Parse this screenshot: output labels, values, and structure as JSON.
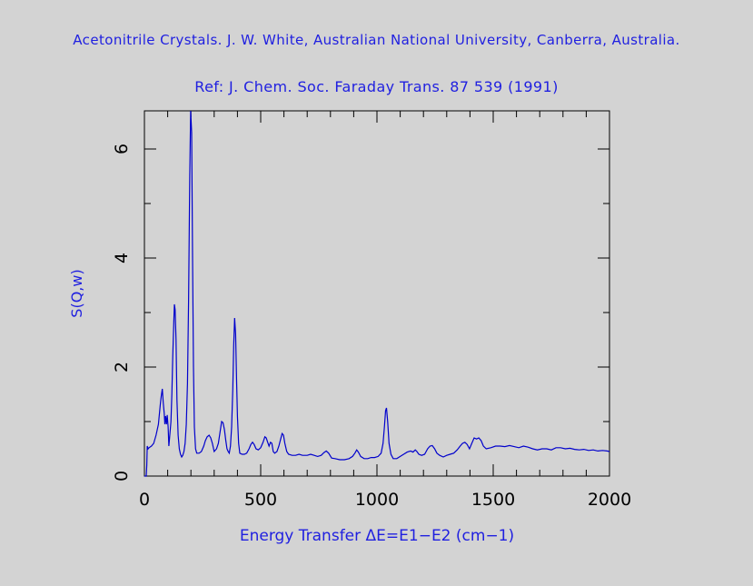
{
  "chart_data": {
    "type": "line",
    "title": "Acetonitrile Crystals. J. W. White, Australian National University, Canberra, Australia.",
    "subtitle": "Ref: J. Chem. Soc. Faraday Trans. 87 539 (1991)",
    "xlabel": "Energy Transfer ΔE=E1−E2 (cm−1)",
    "ylabel": "S(Q,w)",
    "xlim": [
      0,
      2000
    ],
    "ylim": [
      0,
      6.7
    ],
    "x_ticks": [
      "0",
      "500",
      "1000",
      "1500",
      "2000"
    ],
    "y_ticks": [
      "0",
      "2",
      "4",
      "6"
    ],
    "line_color": "#0000cc",
    "series": [
      {
        "points": [
          [
            0,
            0
          ],
          [
            8,
            0
          ],
          [
            10,
            0.2
          ],
          [
            12,
            0.55
          ],
          [
            16,
            0.5
          ],
          [
            20,
            0.52
          ],
          [
            30,
            0.55
          ],
          [
            40,
            0.6
          ],
          [
            50,
            0.75
          ],
          [
            60,
            0.95
          ],
          [
            68,
            1.3
          ],
          [
            72,
            1.45
          ],
          [
            77,
            1.6
          ],
          [
            81,
            1.35
          ],
          [
            85,
            1.15
          ],
          [
            88,
            0.95
          ],
          [
            91,
            1.1
          ],
          [
            95,
            0.95
          ],
          [
            98,
            1.12
          ],
          [
            102,
            0.9
          ],
          [
            105,
            0.55
          ],
          [
            110,
            0.8
          ],
          [
            114,
            1.0
          ],
          [
            118,
            1.5
          ],
          [
            122,
            2.2
          ],
          [
            126,
            2.8
          ],
          [
            129,
            3.15
          ],
          [
            132,
            3.05
          ],
          [
            136,
            2.5
          ],
          [
            140,
            1.4
          ],
          [
            145,
            0.75
          ],
          [
            150,
            0.5
          ],
          [
            155,
            0.4
          ],
          [
            160,
            0.35
          ],
          [
            165,
            0.38
          ],
          [
            170,
            0.45
          ],
          [
            175,
            0.6
          ],
          [
            180,
            0.95
          ],
          [
            185,
            1.7
          ],
          [
            190,
            3.2
          ],
          [
            195,
            5.5
          ],
          [
            199,
            6.7
          ],
          [
            203,
            6.3
          ],
          [
            207,
            4.0
          ],
          [
            211,
            2.0
          ],
          [
            215,
            0.9
          ],
          [
            220,
            0.5
          ],
          [
            225,
            0.42
          ],
          [
            235,
            0.42
          ],
          [
            245,
            0.45
          ],
          [
            255,
            0.55
          ],
          [
            262,
            0.65
          ],
          [
            270,
            0.72
          ],
          [
            278,
            0.75
          ],
          [
            285,
            0.7
          ],
          [
            292,
            0.6
          ],
          [
            300,
            0.45
          ],
          [
            310,
            0.5
          ],
          [
            318,
            0.6
          ],
          [
            325,
            0.8
          ],
          [
            332,
            1.0
          ],
          [
            338,
            0.98
          ],
          [
            344,
            0.85
          ],
          [
            350,
            0.65
          ],
          [
            355,
            0.5
          ],
          [
            360,
            0.45
          ],
          [
            365,
            0.42
          ],
          [
            370,
            0.55
          ],
          [
            375,
            0.9
          ],
          [
            380,
            1.6
          ],
          [
            384,
            2.4
          ],
          [
            388,
            2.9
          ],
          [
            392,
            2.6
          ],
          [
            396,
            1.8
          ],
          [
            400,
            1.1
          ],
          [
            405,
            0.6
          ],
          [
            410,
            0.42
          ],
          [
            420,
            0.4
          ],
          [
            430,
            0.4
          ],
          [
            440,
            0.42
          ],
          [
            450,
            0.5
          ],
          [
            458,
            0.58
          ],
          [
            465,
            0.62
          ],
          [
            472,
            0.58
          ],
          [
            480,
            0.5
          ],
          [
            490,
            0.48
          ],
          [
            500,
            0.52
          ],
          [
            510,
            0.62
          ],
          [
            518,
            0.72
          ],
          [
            524,
            0.7
          ],
          [
            530,
            0.62
          ],
          [
            536,
            0.55
          ],
          [
            542,
            0.62
          ],
          [
            548,
            0.6
          ],
          [
            554,
            0.45
          ],
          [
            560,
            0.42
          ],
          [
            570,
            0.45
          ],
          [
            578,
            0.55
          ],
          [
            586,
            0.68
          ],
          [
            592,
            0.78
          ],
          [
            598,
            0.75
          ],
          [
            604,
            0.6
          ],
          [
            612,
            0.45
          ],
          [
            620,
            0.4
          ],
          [
            635,
            0.38
          ],
          [
            650,
            0.38
          ],
          [
            665,
            0.4
          ],
          [
            680,
            0.38
          ],
          [
            700,
            0.38
          ],
          [
            715,
            0.4
          ],
          [
            730,
            0.38
          ],
          [
            745,
            0.36
          ],
          [
            760,
            0.38
          ],
          [
            772,
            0.43
          ],
          [
            782,
            0.46
          ],
          [
            792,
            0.42
          ],
          [
            805,
            0.33
          ],
          [
            820,
            0.32
          ],
          [
            840,
            0.3
          ],
          [
            860,
            0.3
          ],
          [
            880,
            0.32
          ],
          [
            895,
            0.36
          ],
          [
            905,
            0.42
          ],
          [
            913,
            0.48
          ],
          [
            920,
            0.44
          ],
          [
            930,
            0.36
          ],
          [
            945,
            0.32
          ],
          [
            960,
            0.32
          ],
          [
            975,
            0.34
          ],
          [
            990,
            0.34
          ],
          [
            1005,
            0.36
          ],
          [
            1018,
            0.42
          ],
          [
            1026,
            0.6
          ],
          [
            1032,
            0.9
          ],
          [
            1037,
            1.2
          ],
          [
            1041,
            1.25
          ],
          [
            1046,
            1.0
          ],
          [
            1052,
            0.6
          ],
          [
            1060,
            0.4
          ],
          [
            1070,
            0.32
          ],
          [
            1085,
            0.32
          ],
          [
            1100,
            0.36
          ],
          [
            1115,
            0.4
          ],
          [
            1130,
            0.44
          ],
          [
            1145,
            0.46
          ],
          [
            1155,
            0.44
          ],
          [
            1165,
            0.48
          ],
          [
            1172,
            0.45
          ],
          [
            1180,
            0.4
          ],
          [
            1192,
            0.38
          ],
          [
            1205,
            0.4
          ],
          [
            1218,
            0.5
          ],
          [
            1228,
            0.55
          ],
          [
            1238,
            0.56
          ],
          [
            1248,
            0.5
          ],
          [
            1258,
            0.42
          ],
          [
            1270,
            0.38
          ],
          [
            1285,
            0.35
          ],
          [
            1300,
            0.38
          ],
          [
            1315,
            0.4
          ],
          [
            1330,
            0.42
          ],
          [
            1345,
            0.48
          ],
          [
            1358,
            0.55
          ],
          [
            1368,
            0.6
          ],
          [
            1378,
            0.62
          ],
          [
            1388,
            0.58
          ],
          [
            1398,
            0.5
          ],
          [
            1408,
            0.6
          ],
          [
            1418,
            0.7
          ],
          [
            1428,
            0.68
          ],
          [
            1438,
            0.7
          ],
          [
            1448,
            0.65
          ],
          [
            1458,
            0.55
          ],
          [
            1470,
            0.5
          ],
          [
            1490,
            0.52
          ],
          [
            1510,
            0.55
          ],
          [
            1530,
            0.55
          ],
          [
            1550,
            0.54
          ],
          [
            1570,
            0.56
          ],
          [
            1590,
            0.54
          ],
          [
            1610,
            0.52
          ],
          [
            1630,
            0.55
          ],
          [
            1650,
            0.53
          ],
          [
            1670,
            0.5
          ],
          [
            1690,
            0.48
          ],
          [
            1710,
            0.5
          ],
          [
            1730,
            0.5
          ],
          [
            1750,
            0.48
          ],
          [
            1770,
            0.52
          ],
          [
            1790,
            0.52
          ],
          [
            1810,
            0.5
          ],
          [
            1830,
            0.51
          ],
          [
            1850,
            0.49
          ],
          [
            1870,
            0.48
          ],
          [
            1890,
            0.49
          ],
          [
            1910,
            0.47
          ],
          [
            1930,
            0.48
          ],
          [
            1950,
            0.46
          ],
          [
            1970,
            0.47
          ],
          [
            1990,
            0.46
          ],
          [
            2000,
            0.45
          ]
        ]
      }
    ]
  }
}
